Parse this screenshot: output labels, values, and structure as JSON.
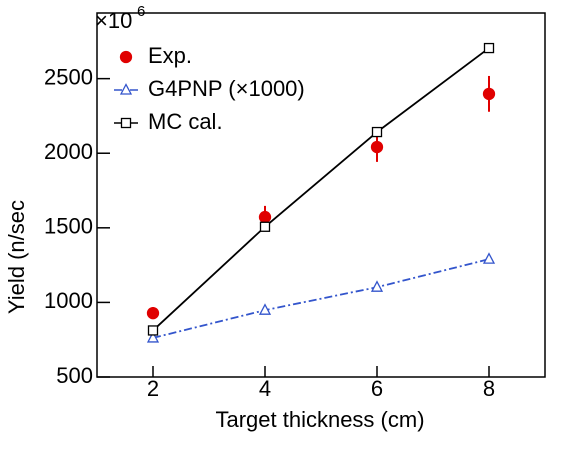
{
  "chart_data": {
    "type": "line",
    "x_label": "Target thickness (cm)",
    "y_label": "Yield (n/sec",
    "y_multiplier": "×10",
    "y_exponent": "6",
    "xlim": [
      1,
      9
    ],
    "xticks": [
      2,
      4,
      6,
      8
    ],
    "ylim": [
      500,
      2940
    ],
    "yticks": [
      500,
      1000,
      1500,
      2000,
      2500
    ],
    "x": [
      2,
      4,
      6,
      8
    ],
    "series": [
      {
        "name": "Exp.",
        "color": "#e00000",
        "marker": "circle",
        "line": "none",
        "values": [
          928,
          1572,
          2042,
          2398
        ],
        "errors": [
          40,
          75,
          100,
          120
        ]
      },
      {
        "name": "G4PNP (×1000)",
        "color": "#3355cc",
        "marker": "triangle",
        "line": "dashdot",
        "values": [
          762,
          948,
          1102,
          1290
        ]
      },
      {
        "name": "MC cal.",
        "color": "#000000",
        "marker": "square",
        "line": "solid",
        "values": [
          812,
          1507,
          2142,
          2705
        ]
      }
    ]
  }
}
